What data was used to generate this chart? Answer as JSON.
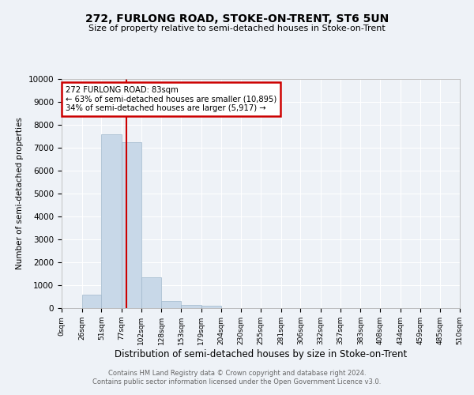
{
  "title1": "272, FURLONG ROAD, STOKE-ON-TRENT, ST6 5UN",
  "title2": "Size of property relative to semi-detached houses in Stoke-on-Trent",
  "xlabel": "Distribution of semi-detached houses by size in Stoke-on-Trent",
  "ylabel": "Number of semi-detached properties",
  "footer1": "Contains HM Land Registry data © Crown copyright and database right 2024.",
  "footer2": "Contains public sector information licensed under the Open Government Licence v3.0.",
  "property_size": 83,
  "annotation_line1": "272 FURLONG ROAD: 83sqm",
  "annotation_line2": "← 63% of semi-detached houses are smaller (10,895)",
  "annotation_line3": "34% of semi-detached houses are larger (5,917) →",
  "bin_edges": [
    0,
    26,
    51,
    77,
    102,
    128,
    153,
    179,
    204,
    230,
    255,
    281,
    306,
    332,
    357,
    383,
    408,
    434,
    459,
    485,
    510
  ],
  "bar_heights": [
    0,
    580,
    7600,
    7250,
    1330,
    300,
    130,
    90,
    0,
    0,
    0,
    0,
    0,
    0,
    0,
    0,
    0,
    0,
    0,
    0
  ],
  "bar_color": "#c8d8e8",
  "bar_edge_color": "#a0b8cc",
  "highlight_color": "#cc0000",
  "annotation_box_color": "#ffffff",
  "annotation_box_edge": "#cc0000",
  "background_color": "#eef2f7",
  "grid_color": "#ffffff",
  "ylim": [
    0,
    10000
  ],
  "yticks": [
    0,
    1000,
    2000,
    3000,
    4000,
    5000,
    6000,
    7000,
    8000,
    9000,
    10000
  ],
  "ytick_labels": [
    "0",
    "1000",
    "2000",
    "3000",
    "4000",
    "5000",
    "6000",
    "7000",
    "8000",
    "9000",
    "10000"
  ]
}
